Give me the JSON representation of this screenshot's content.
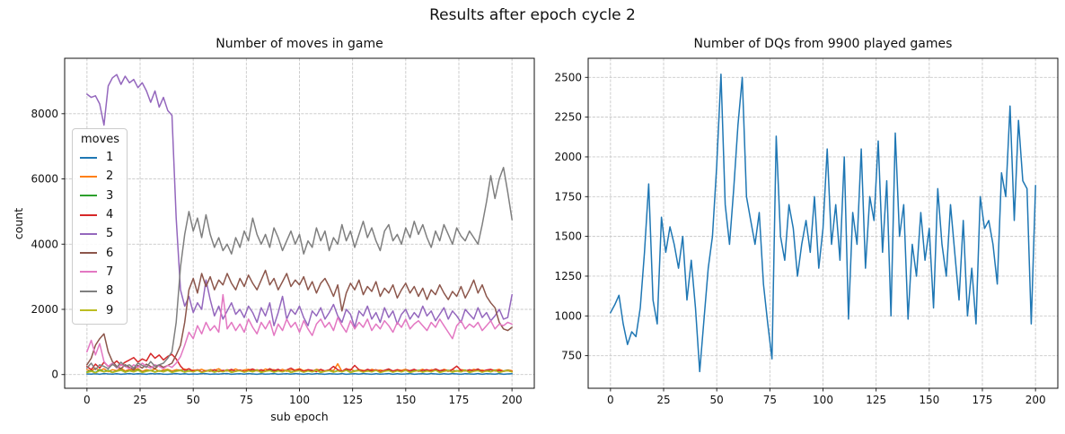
{
  "figure_title": "Results after epoch cycle 2",
  "text_color": "#111111",
  "grid_color": "#c8c8c8",
  "chart_data": [
    {
      "type": "line",
      "title": "Number of moves in game",
      "xlabel": "sub epoch",
      "ylabel": "count",
      "legend_title": "moves",
      "legend_position": "upper-left-inside",
      "grid": "dashed",
      "xlim": [
        -10.5,
        210.5
      ],
      "ylim": [
        -420,
        9700
      ],
      "xticks": [
        0,
        25,
        50,
        75,
        100,
        125,
        150,
        175,
        200
      ],
      "yticks": [
        0,
        2000,
        4000,
        6000,
        8000
      ],
      "x_start": 0,
      "x_step": 2,
      "series": [
        {
          "name": "1",
          "color": "#1f77b4",
          "values": [
            20,
            15,
            25,
            10,
            30,
            20,
            15,
            25,
            10,
            20,
            30,
            15,
            25,
            20,
            10,
            30,
            20,
            25,
            15,
            10,
            20,
            30,
            15,
            25,
            10,
            20,
            15,
            30,
            25,
            10,
            20,
            15,
            25,
            30,
            10,
            20,
            25,
            15,
            30,
            20,
            10,
            25,
            15,
            20,
            30,
            10,
            20,
            25,
            15,
            30,
            20,
            10,
            25,
            15,
            30,
            20,
            10,
            25,
            20,
            15,
            30,
            10,
            20,
            25,
            15,
            30,
            20,
            10,
            25,
            15,
            20,
            30,
            10,
            25,
            15,
            20,
            30,
            10,
            20,
            25,
            15,
            30,
            20,
            10,
            25,
            15,
            30,
            20,
            10,
            25,
            20,
            15,
            30,
            10,
            25,
            20,
            15,
            30,
            10,
            20,
            25
          ]
        },
        {
          "name": "2",
          "color": "#ff7f0e",
          "values": [
            150,
            100,
            200,
            120,
            180,
            90,
            150,
            120,
            200,
            110,
            160,
            130,
            180,
            100,
            150,
            120,
            170,
            100,
            140,
            160,
            110,
            150,
            130,
            170,
            100,
            140,
            120,
            160,
            110,
            150,
            130,
            180,
            100,
            150,
            120,
            170,
            110,
            140,
            160,
            120,
            150,
            100,
            170,
            130,
            150,
            110,
            160,
            100,
            140,
            140,
            180,
            120,
            150,
            100,
            160,
            130,
            110,
            150,
            120,
            330,
            100,
            140,
            160,
            110,
            150,
            130,
            100,
            160,
            120,
            140,
            110,
            170,
            100,
            150,
            130,
            160,
            110,
            140,
            120,
            160,
            100,
            150,
            130,
            110,
            160,
            120,
            140,
            100,
            150,
            130,
            110,
            160,
            120,
            140,
            100,
            150,
            130,
            160,
            110,
            140,
            120
          ]
        },
        {
          "name": "3",
          "color": "#2ca02c",
          "values": [
            80,
            120,
            60,
            150,
            90,
            130,
            70,
            110,
            140,
            80,
            120,
            90,
            150,
            70,
            110,
            130,
            80,
            120,
            90,
            140,
            70,
            110,
            130,
            80,
            120,
            90,
            140,
            70,
            110,
            130,
            80,
            120,
            90,
            140,
            70,
            110,
            130,
            80,
            120,
            90,
            140,
            70,
            110,
            130,
            80,
            120,
            90,
            140,
            70,
            110,
            130,
            80,
            120,
            90,
            140,
            70,
            110,
            130,
            80,
            120,
            90,
            140,
            70,
            110,
            130,
            80,
            120,
            90,
            140,
            70,
            110,
            130,
            80,
            120,
            90,
            140,
            70,
            110,
            130,
            80,
            120,
            90,
            140,
            70,
            110,
            130,
            80,
            120,
            90,
            140,
            70,
            110,
            130,
            80,
            120,
            90,
            140,
            70,
            110,
            130,
            90
          ]
        },
        {
          "name": "4",
          "color": "#d62728",
          "values": [
            250,
            150,
            320,
            200,
            380,
            250,
            300,
            420,
            280,
            380,
            450,
            520,
            380,
            480,
            420,
            650,
            500,
            600,
            450,
            560,
            620,
            480,
            260,
            130,
            180,
            100,
            150,
            80,
            120,
            100,
            150,
            90,
            130,
            110,
            160,
            100,
            140,
            90,
            130,
            170,
            110,
            150,
            100,
            180,
            120,
            160,
            100,
            140,
            200,
            120,
            160,
            100,
            150,
            130,
            90,
            160,
            110,
            140,
            250,
            150,
            100,
            180,
            130,
            280,
            150,
            100,
            160,
            120,
            150,
            90,
            130,
            170,
            110,
            150,
            100,
            140,
            120,
            160,
            100,
            130,
            150,
            110,
            170,
            120,
            140,
            100,
            160,
            260,
            130,
            110,
            150,
            120,
            170,
            100,
            140,
            160,
            110,
            130,
            100,
            120,
            90
          ]
        },
        {
          "name": "5",
          "color": "#9467bd",
          "values": [
            8600,
            8500,
            8550,
            8300,
            7650,
            8850,
            9100,
            9200,
            8900,
            9150,
            8950,
            9050,
            8800,
            8950,
            8700,
            8350,
            8700,
            8200,
            8500,
            8100,
            7950,
            4800,
            2600,
            2100,
            2400,
            1900,
            2200,
            2000,
            2900,
            2300,
            1800,
            2100,
            1700,
            1950,
            2200,
            1850,
            2000,
            1750,
            2100,
            1900,
            1600,
            2050,
            1800,
            2200,
            1500,
            1900,
            2400,
            1700,
            2000,
            1850,
            2100,
            1750,
            1500,
            1950,
            1800,
            2050,
            1700,
            1900,
            2150,
            1800,
            1600,
            2000,
            1850,
            1450,
            1950,
            1800,
            2100,
            1700,
            1900,
            1600,
            2050,
            1750,
            1950,
            1550,
            1850,
            2000,
            1700,
            1900,
            1750,
            2100,
            1800,
            1950,
            1650,
            1850,
            2050,
            1700,
            1950,
            1800,
            1600,
            2000,
            1850,
            1700,
            2050,
            1750,
            1900,
            1650,
            1800,
            2000,
            1700,
            1750,
            2450
          ]
        },
        {
          "name": "6",
          "color": "#8c564b",
          "values": [
            300,
            500,
            900,
            1100,
            1250,
            700,
            400,
            250,
            180,
            300,
            220,
            150,
            280,
            200,
            320,
            250,
            180,
            300,
            220,
            280,
            350,
            600,
            900,
            1600,
            2600,
            2950,
            2500,
            3100,
            2700,
            3000,
            2600,
            2900,
            2750,
            3100,
            2800,
            2600,
            2950,
            2700,
            3050,
            2800,
            2600,
            2900,
            3200,
            2750,
            2950,
            2600,
            2850,
            3100,
            2700,
            2900,
            2750,
            3000,
            2600,
            2850,
            2500,
            2800,
            2950,
            2700,
            2400,
            2750,
            1950,
            2500,
            2800,
            2600,
            2900,
            2450,
            2700,
            2550,
            2850,
            2400,
            2650,
            2500,
            2750,
            2350,
            2600,
            2800,
            2500,
            2700,
            2400,
            2650,
            2300,
            2600,
            2450,
            2750,
            2500,
            2300,
            2550,
            2400,
            2700,
            2350,
            2600,
            2900,
            2500,
            2750,
            2400,
            2200,
            2050,
            1600,
            1400,
            1350,
            1450
          ]
        },
        {
          "name": "7",
          "color": "#e377c2",
          "values": [
            700,
            1050,
            600,
            950,
            400,
            250,
            350,
            200,
            300,
            250,
            180,
            300,
            220,
            350,
            250,
            200,
            300,
            250,
            180,
            280,
            220,
            350,
            550,
            900,
            1300,
            1100,
            1500,
            1250,
            1600,
            1350,
            1500,
            1300,
            2450,
            1400,
            1600,
            1350,
            1550,
            1300,
            1700,
            1450,
            1250,
            1600,
            1400,
            1650,
            1200,
            1550,
            1350,
            1700,
            1450,
            1600,
            1300,
            1650,
            1400,
            1200,
            1550,
            1700,
            1450,
            1600,
            1350,
            1750,
            1500,
            1300,
            1650,
            1400,
            1600,
            1450,
            1700,
            1350,
            1550,
            1400,
            1650,
            1500,
            1300,
            1600,
            1450,
            1700,
            1400,
            1550,
            1650,
            1500,
            1350,
            1600,
            1450,
            1700,
            1500,
            1300,
            1100,
            1500,
            1650,
            1400,
            1550,
            1450,
            1600,
            1350,
            1500,
            1650,
            1400,
            1550,
            1500,
            1600,
            1550
          ]
        },
        {
          "name": "8",
          "color": "#7f7f7f",
          "values": [
            200,
            350,
            150,
            300,
            250,
            180,
            320,
            220,
            380,
            260,
            300,
            200,
            350,
            280,
            220,
            400,
            250,
            300,
            350,
            500,
            700,
            1600,
            3300,
            4300,
            5000,
            4400,
            4800,
            4200,
            4900,
            4300,
            3900,
            4200,
            3800,
            4000,
            3700,
            4200,
            3900,
            4400,
            4100,
            4800,
            4300,
            4000,
            4300,
            3900,
            4500,
            4200,
            3800,
            4100,
            4400,
            4000,
            4300,
            3700,
            4100,
            3900,
            4500,
            4100,
            4400,
            3800,
            4200,
            4000,
            4600,
            4100,
            4400,
            3900,
            4300,
            4700,
            4200,
            4500,
            4100,
            3800,
            4400,
            4600,
            4100,
            4300,
            4000,
            4500,
            4200,
            4700,
            4300,
            4600,
            4200,
            3900,
            4400,
            4100,
            4600,
            4300,
            4000,
            4500,
            4250,
            4100,
            4400,
            4200,
            4000,
            4600,
            5300,
            6100,
            5400,
            6000,
            6350,
            5600,
            4750
          ]
        },
        {
          "name": "9",
          "color": "#bcbd22",
          "values": [
            60,
            100,
            50,
            120,
            80,
            110,
            60,
            100,
            130,
            70,
            110,
            80,
            130,
            60,
            100,
            120,
            70,
            110,
            80,
            130,
            60,
            100,
            120,
            70,
            110,
            80,
            130,
            60,
            100,
            120,
            70,
            110,
            80,
            130,
            60,
            100,
            120,
            70,
            110,
            80,
            130,
            60,
            100,
            120,
            70,
            110,
            80,
            130,
            60,
            100,
            120,
            70,
            110,
            80,
            130,
            60,
            100,
            120,
            70,
            110,
            80,
            130,
            60,
            100,
            120,
            70,
            110,
            80,
            130,
            60,
            100,
            120,
            70,
            110,
            80,
            130,
            60,
            100,
            120,
            70,
            110,
            80,
            130,
            60,
            100,
            120,
            70,
            110,
            80,
            130,
            60,
            100,
            120,
            70,
            110,
            80,
            130,
            60,
            100,
            120,
            80
          ]
        }
      ]
    },
    {
      "type": "line",
      "title": "Number of DQs from 9900 played games",
      "xlabel": "",
      "ylabel": "",
      "grid": "dashed",
      "xlim": [
        -10.5,
        210.5
      ],
      "ylim": [
        545,
        2620
      ],
      "xticks": [
        0,
        25,
        50,
        75,
        100,
        125,
        150,
        175,
        200
      ],
      "yticks": [
        750,
        1000,
        1250,
        1500,
        1750,
        2000,
        2250,
        2500
      ],
      "x_start": 0,
      "x_step": 2,
      "series": [
        {
          "name": "DQs",
          "color": "#1f77b4",
          "values": [
            1020,
            1070,
            1130,
            950,
            820,
            900,
            870,
            1050,
            1400,
            1830,
            1100,
            950,
            1620,
            1400,
            1560,
            1450,
            1300,
            1500,
            1100,
            1350,
            1050,
            650,
            980,
            1300,
            1500,
            1950,
            2520,
            1700,
            1450,
            1800,
            2200,
            2500,
            1750,
            1600,
            1450,
            1650,
            1200,
            950,
            730,
            2130,
            1500,
            1350,
            1700,
            1550,
            1250,
            1450,
            1600,
            1400,
            1750,
            1300,
            1550,
            2050,
            1450,
            1700,
            1350,
            2000,
            980,
            1650,
            1450,
            2050,
            1300,
            1750,
            1600,
            2100,
            1400,
            1850,
            1000,
            2150,
            1500,
            1700,
            980,
            1450,
            1250,
            1650,
            1350,
            1550,
            1050,
            1800,
            1450,
            1250,
            1700,
            1400,
            1100,
            1600,
            1000,
            1300,
            950,
            1750,
            1550,
            1600,
            1450,
            1200,
            1900,
            1750,
            2320,
            1600,
            2230,
            1850,
            1800,
            950,
            1820
          ]
        }
      ]
    }
  ]
}
